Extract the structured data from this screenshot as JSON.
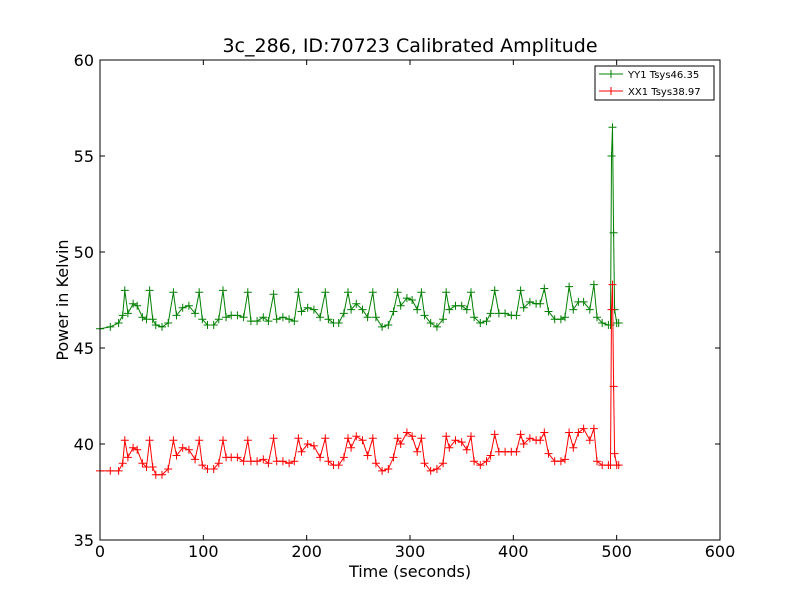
{
  "chart_data": {
    "type": "line",
    "title": "3c_286, ID:70723 Calibrated Amplitude",
    "xlabel": "Time (seconds)",
    "ylabel": "Power in Kelvin",
    "xlim": [
      0,
      600
    ],
    "ylim": [
      35,
      60
    ],
    "xticks": [
      "0",
      "100",
      "200",
      "300",
      "400",
      "500",
      "600"
    ],
    "yticks": [
      "35",
      "40",
      "45",
      "50",
      "55",
      "60"
    ],
    "grid": false,
    "legend_position": "top-right",
    "marker": "+",
    "series": [
      {
        "name": "YY1 Tsys46.35",
        "color": "#008000",
        "points": [
          [
            0,
            46.0
          ],
          [
            10,
            46.1
          ],
          [
            18,
            46.3
          ],
          [
            22,
            46.7
          ],
          [
            24,
            48.0
          ],
          [
            27,
            46.8
          ],
          [
            32,
            47.3
          ],
          [
            36,
            47.2
          ],
          [
            41,
            46.6
          ],
          [
            45,
            46.5
          ],
          [
            48,
            48.0
          ],
          [
            51,
            46.5
          ],
          [
            54,
            46.2
          ],
          [
            60,
            46.1
          ],
          [
            66,
            46.3
          ],
          [
            71,
            47.9
          ],
          [
            74,
            46.7
          ],
          [
            80,
            47.1
          ],
          [
            86,
            47.2
          ],
          [
            92,
            46.8
          ],
          [
            96,
            47.9
          ],
          [
            99,
            46.5
          ],
          [
            104,
            46.2
          ],
          [
            110,
            46.2
          ],
          [
            115,
            46.5
          ],
          [
            119,
            48.0
          ],
          [
            122,
            46.6
          ],
          [
            127,
            46.7
          ],
          [
            133,
            46.7
          ],
          [
            139,
            46.6
          ],
          [
            143,
            47.9
          ],
          [
            146,
            46.4
          ],
          [
            152,
            46.4
          ],
          [
            158,
            46.6
          ],
          [
            163,
            46.4
          ],
          [
            168,
            47.8
          ],
          [
            171,
            46.5
          ],
          [
            177,
            46.6
          ],
          [
            183,
            46.5
          ],
          [
            188,
            46.4
          ],
          [
            192,
            47.9
          ],
          [
            195,
            46.9
          ],
          [
            201,
            47.1
          ],
          [
            207,
            47.0
          ],
          [
            213,
            46.6
          ],
          [
            218,
            47.9
          ],
          [
            221,
            46.5
          ],
          [
            226,
            46.3
          ],
          [
            231,
            46.3
          ],
          [
            236,
            46.8
          ],
          [
            240,
            47.9
          ],
          [
            243,
            47.0
          ],
          [
            248,
            47.3
          ],
          [
            254,
            47.0
          ],
          [
            259,
            46.6
          ],
          [
            264,
            47.9
          ],
          [
            267,
            46.6
          ],
          [
            273,
            46.1
          ],
          [
            279,
            46.2
          ],
          [
            284,
            46.9
          ],
          [
            288,
            47.9
          ],
          [
            291,
            47.2
          ],
          [
            297,
            47.6
          ],
          [
            302,
            47.5
          ],
          [
            307,
            47.0
          ],
          [
            311,
            47.9
          ],
          [
            314,
            46.7
          ],
          [
            320,
            46.3
          ],
          [
            326,
            46.1
          ],
          [
            332,
            46.5
          ],
          [
            335,
            47.9
          ],
          [
            338,
            47.0
          ],
          [
            344,
            47.2
          ],
          [
            350,
            47.2
          ],
          [
            355,
            47.0
          ],
          [
            359,
            47.9
          ],
          [
            362,
            46.6
          ],
          [
            368,
            46.3
          ],
          [
            374,
            46.4
          ],
          [
            378,
            46.8
          ],
          [
            382,
            48.0
          ],
          [
            386,
            46.8
          ],
          [
            392,
            46.8
          ],
          [
            398,
            46.7
          ],
          [
            403,
            46.7
          ],
          [
            407,
            48.0
          ],
          [
            410,
            47.1
          ],
          [
            416,
            47.4
          ],
          [
            422,
            47.3
          ],
          [
            426,
            47.3
          ],
          [
            430,
            48.1
          ],
          [
            434,
            46.9
          ],
          [
            440,
            46.5
          ],
          [
            446,
            46.5
          ],
          [
            450,
            46.6
          ],
          [
            454,
            48.2
          ],
          [
            458,
            47.0
          ],
          [
            463,
            47.4
          ],
          [
            468,
            47.4
          ],
          [
            474,
            47.0
          ],
          [
            478,
            48.3
          ],
          [
            481,
            46.6
          ],
          [
            486,
            46.3
          ],
          [
            492,
            46.2
          ],
          [
            494,
            46.2
          ],
          [
            495,
            55.0
          ],
          [
            496,
            56.5
          ],
          [
            497,
            51.0
          ],
          [
            498,
            47.0
          ],
          [
            500,
            46.3
          ],
          [
            502,
            46.3
          ]
        ]
      },
      {
        "name": "XX1 Tsys38.97",
        "color": "#ff0000",
        "points": [
          [
            0,
            38.6
          ],
          [
            10,
            38.6
          ],
          [
            18,
            38.6
          ],
          [
            22,
            39.0
          ],
          [
            24,
            40.2
          ],
          [
            27,
            39.3
          ],
          [
            32,
            39.8
          ],
          [
            36,
            39.7
          ],
          [
            41,
            39.0
          ],
          [
            45,
            38.8
          ],
          [
            48,
            40.2
          ],
          [
            51,
            38.8
          ],
          [
            54,
            38.4
          ],
          [
            60,
            38.4
          ],
          [
            66,
            38.7
          ],
          [
            71,
            40.2
          ],
          [
            74,
            39.4
          ],
          [
            80,
            39.8
          ],
          [
            86,
            39.7
          ],
          [
            92,
            39.2
          ],
          [
            96,
            40.2
          ],
          [
            99,
            38.9
          ],
          [
            104,
            38.7
          ],
          [
            110,
            38.7
          ],
          [
            115,
            39.0
          ],
          [
            119,
            40.2
          ],
          [
            122,
            39.3
          ],
          [
            127,
            39.3
          ],
          [
            133,
            39.3
          ],
          [
            139,
            39.1
          ],
          [
            143,
            40.2
          ],
          [
            146,
            39.1
          ],
          [
            152,
            39.1
          ],
          [
            158,
            39.2
          ],
          [
            163,
            39.0
          ],
          [
            168,
            40.3
          ],
          [
            171,
            39.1
          ],
          [
            177,
            39.1
          ],
          [
            183,
            39.0
          ],
          [
            188,
            39.1
          ],
          [
            192,
            40.3
          ],
          [
            195,
            39.6
          ],
          [
            201,
            40.0
          ],
          [
            207,
            39.9
          ],
          [
            213,
            39.3
          ],
          [
            218,
            40.3
          ],
          [
            221,
            39.1
          ],
          [
            226,
            38.9
          ],
          [
            231,
            38.9
          ],
          [
            236,
            39.3
          ],
          [
            240,
            40.3
          ],
          [
            243,
            39.8
          ],
          [
            248,
            40.4
          ],
          [
            254,
            40.2
          ],
          [
            259,
            39.4
          ],
          [
            264,
            40.3
          ],
          [
            267,
            39.0
          ],
          [
            273,
            38.6
          ],
          [
            279,
            38.7
          ],
          [
            284,
            39.3
          ],
          [
            288,
            40.3
          ],
          [
            291,
            40.0
          ],
          [
            297,
            40.6
          ],
          [
            302,
            40.4
          ],
          [
            307,
            39.6
          ],
          [
            311,
            40.3
          ],
          [
            314,
            39.0
          ],
          [
            320,
            38.6
          ],
          [
            326,
            38.7
          ],
          [
            332,
            39.0
          ],
          [
            335,
            40.4
          ],
          [
            338,
            39.8
          ],
          [
            344,
            40.2
          ],
          [
            350,
            40.1
          ],
          [
            355,
            39.7
          ],
          [
            359,
            40.4
          ],
          [
            362,
            39.1
          ],
          [
            368,
            38.9
          ],
          [
            374,
            39.1
          ],
          [
            378,
            39.4
          ],
          [
            382,
            40.5
          ],
          [
            386,
            39.6
          ],
          [
            392,
            39.6
          ],
          [
            398,
            39.6
          ],
          [
            403,
            39.6
          ],
          [
            407,
            40.5
          ],
          [
            410,
            40.0
          ],
          [
            416,
            40.3
          ],
          [
            422,
            40.2
          ],
          [
            426,
            40.2
          ],
          [
            430,
            40.6
          ],
          [
            434,
            39.5
          ],
          [
            440,
            39.1
          ],
          [
            446,
            39.1
          ],
          [
            450,
            39.2
          ],
          [
            454,
            40.6
          ],
          [
            458,
            39.8
          ],
          [
            463,
            40.6
          ],
          [
            468,
            40.8
          ],
          [
            474,
            40.2
          ],
          [
            478,
            40.8
          ],
          [
            481,
            39.1
          ],
          [
            486,
            38.9
          ],
          [
            492,
            38.9
          ],
          [
            494,
            38.9
          ],
          [
            495,
            47.0
          ],
          [
            496,
            48.3
          ],
          [
            497,
            43.0
          ],
          [
            498,
            39.5
          ],
          [
            500,
            38.9
          ],
          [
            502,
            38.9
          ]
        ]
      }
    ]
  }
}
